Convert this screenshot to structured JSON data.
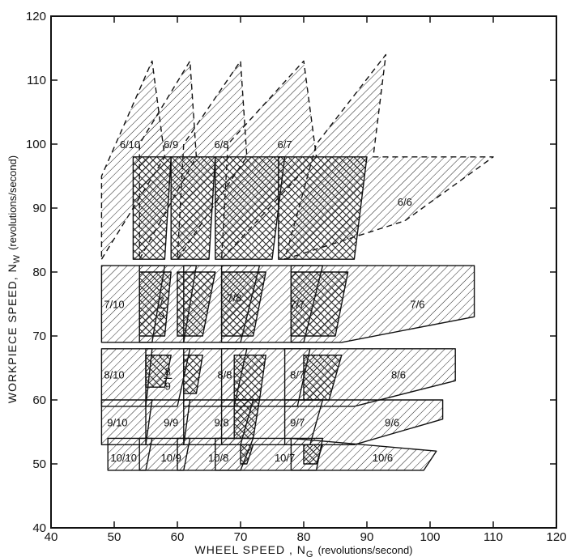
{
  "chart_data": {
    "type": "area",
    "title": "",
    "xlabel": "WHEEL SPEED , N",
    "xlabel_sub": "G",
    "xlabel_units": "(revolutions/second)",
    "ylabel": "WORKPIECE SPEED, N",
    "ylabel_sub": "W",
    "ylabel_units": "(revolutions/second)",
    "xlim": [
      40,
      120
    ],
    "ylim": [
      40,
      120
    ],
    "xticks": [
      40,
      50,
      60,
      70,
      80,
      90,
      100,
      110,
      120
    ],
    "yticks": [
      40,
      50,
      60,
      70,
      80,
      90,
      100,
      110,
      120
    ],
    "grid": false,
    "regions": [
      {
        "label": "6/10",
        "dashed": true,
        "polygon": [
          [
            48,
            82
          ],
          [
            58,
            98
          ],
          [
            56,
            113
          ],
          [
            48,
            95
          ]
        ]
      },
      {
        "label": "6/9",
        "dashed": true,
        "polygon": [
          [
            54,
            82
          ],
          [
            63,
            98
          ],
          [
            62,
            113
          ],
          [
            54,
            100
          ]
        ]
      },
      {
        "label": "6/8",
        "dashed": true,
        "polygon": [
          [
            60,
            82
          ],
          [
            71,
            98
          ],
          [
            70,
            113
          ],
          [
            61,
            100
          ]
        ]
      },
      {
        "label": "6/7",
        "dashed": true,
        "polygon": [
          [
            67,
            82
          ],
          [
            82,
            98
          ],
          [
            80,
            113
          ],
          [
            68,
            100
          ]
        ]
      },
      {
        "label": "6/6",
        "dashed": true,
        "polygon": [
          [
            77,
            82
          ],
          [
            96,
            88
          ],
          [
            110,
            98
          ],
          [
            91,
            98
          ],
          [
            93,
            114
          ],
          [
            82,
            100
          ]
        ]
      },
      {
        "label": "7/10",
        "dashed": false,
        "polygon": [
          [
            48,
            81
          ],
          [
            58,
            81
          ],
          [
            56,
            69
          ],
          [
            48,
            69
          ]
        ]
      },
      {
        "label": "7/9",
        "dashed": false,
        "polygon": [
          [
            54,
            81
          ],
          [
            63,
            81
          ],
          [
            61,
            69
          ],
          [
            54,
            69
          ]
        ]
      },
      {
        "label": "7/8",
        "dashed": false,
        "polygon": [
          [
            61,
            81
          ],
          [
            73,
            81
          ],
          [
            70,
            69
          ],
          [
            61,
            69
          ]
        ]
      },
      {
        "label": "7/7",
        "dashed": false,
        "polygon": [
          [
            67,
            81
          ],
          [
            83,
            81
          ],
          [
            80,
            69
          ],
          [
            67,
            69
          ]
        ]
      },
      {
        "label": "7/6",
        "dashed": false,
        "polygon": [
          [
            78,
            81
          ],
          [
            107,
            81
          ],
          [
            107,
            73
          ],
          [
            86,
            69
          ],
          [
            78,
            69
          ]
        ]
      },
      {
        "label": "8/10",
        "dashed": false,
        "polygon": [
          [
            48,
            68
          ],
          [
            56,
            68
          ],
          [
            55,
            59
          ],
          [
            48,
            59
          ]
        ]
      },
      {
        "label": "8/9",
        "dashed": false,
        "polygon": [
          [
            55,
            68
          ],
          [
            62,
            68
          ],
          [
            60,
            59
          ],
          [
            55,
            59
          ]
        ]
      },
      {
        "label": "8/8",
        "dashed": false,
        "polygon": [
          [
            61,
            68
          ],
          [
            71,
            68
          ],
          [
            69,
            59
          ],
          [
            61,
            59
          ]
        ]
      },
      {
        "label": "8/7",
        "dashed": false,
        "polygon": [
          [
            67,
            68
          ],
          [
            81,
            68
          ],
          [
            79,
            59
          ],
          [
            67,
            59
          ]
        ]
      },
      {
        "label": "8/6",
        "dashed": false,
        "polygon": [
          [
            77,
            68
          ],
          [
            104,
            68
          ],
          [
            104,
            63
          ],
          [
            88,
            59
          ],
          [
            77,
            59
          ]
        ]
      },
      {
        "label": "9/10",
        "dashed": false,
        "polygon": [
          [
            48,
            60
          ],
          [
            56,
            60
          ],
          [
            55,
            53
          ],
          [
            48,
            53
          ]
        ]
      },
      {
        "label": "9/9",
        "dashed": false,
        "polygon": [
          [
            55,
            60
          ],
          [
            62,
            60
          ],
          [
            61,
            53
          ],
          [
            55,
            53
          ]
        ]
      },
      {
        "label": "9/8",
        "dashed": false,
        "polygon": [
          [
            61,
            60
          ],
          [
            72,
            60
          ],
          [
            70,
            53
          ],
          [
            61,
            53
          ]
        ]
      },
      {
        "label": "9/7",
        "dashed": false,
        "polygon": [
          [
            67,
            60
          ],
          [
            83,
            60
          ],
          [
            81,
            53
          ],
          [
            67,
            53
          ]
        ]
      },
      {
        "label": "9/6",
        "dashed": false,
        "polygon": [
          [
            77,
            60
          ],
          [
            102,
            60
          ],
          [
            102,
            57
          ],
          [
            88,
            53
          ],
          [
            77,
            53
          ]
        ]
      },
      {
        "label": "10/10",
        "dashed": false,
        "polygon": [
          [
            49,
            54
          ],
          [
            56,
            54
          ],
          [
            55,
            49
          ],
          [
            49,
            49
          ]
        ]
      },
      {
        "label": "10/9",
        "dashed": false,
        "polygon": [
          [
            54,
            54
          ],
          [
            62,
            54
          ],
          [
            61,
            49
          ],
          [
            54,
            49
          ]
        ]
      },
      {
        "label": "10/8",
        "dashed": false,
        "polygon": [
          [
            60,
            54
          ],
          [
            72,
            54
          ],
          [
            70,
            49
          ],
          [
            60,
            49
          ]
        ]
      },
      {
        "label": "10/7",
        "dashed": false,
        "polygon": [
          [
            66,
            54
          ],
          [
            83,
            54
          ],
          [
            82,
            49
          ],
          [
            66,
            49
          ]
        ]
      },
      {
        "label": "10/6",
        "dashed": false,
        "polygon": [
          [
            78,
            54
          ],
          [
            101,
            52
          ],
          [
            99,
            49
          ],
          [
            78,
            49
          ]
        ]
      }
    ],
    "overlaps": [
      [
        [
          53,
          98
        ],
        [
          59,
          98
        ],
        [
          58,
          82
        ],
        [
          53,
          82
        ]
      ],
      [
        [
          59,
          98
        ],
        [
          66,
          98
        ],
        [
          65,
          82
        ],
        [
          59,
          82
        ]
      ],
      [
        [
          66,
          98
        ],
        [
          77,
          98
        ],
        [
          75,
          82
        ],
        [
          66,
          82
        ]
      ],
      [
        [
          76,
          98
        ],
        [
          90,
          98
        ],
        [
          88,
          82
        ],
        [
          76,
          82
        ]
      ],
      [
        [
          54,
          80
        ],
        [
          59,
          80
        ],
        [
          58,
          70
        ],
        [
          54,
          70
        ]
      ],
      [
        [
          60,
          80
        ],
        [
          66,
          80
        ],
        [
          64,
          70
        ],
        [
          60,
          70
        ]
      ],
      [
        [
          67,
          80
        ],
        [
          74,
          80
        ],
        [
          72,
          70
        ],
        [
          67,
          70
        ]
      ],
      [
        [
          78,
          80
        ],
        [
          87,
          80
        ],
        [
          85,
          70
        ],
        [
          78,
          70
        ]
      ],
      [
        [
          55,
          67
        ],
        [
          59,
          67
        ],
        [
          58,
          62
        ],
        [
          55,
          62
        ]
      ],
      [
        [
          61,
          67
        ],
        [
          64,
          67
        ],
        [
          63,
          61
        ],
        [
          61,
          61
        ]
      ],
      [
        [
          69,
          67
        ],
        [
          74,
          67
        ],
        [
          73,
          60
        ],
        [
          69,
          60
        ]
      ],
      [
        [
          80,
          67
        ],
        [
          86,
          67
        ],
        [
          84,
          60
        ],
        [
          80,
          60
        ]
      ],
      [
        [
          69,
          60
        ],
        [
          73,
          60
        ],
        [
          72,
          54
        ],
        [
          69,
          54
        ]
      ],
      [
        [
          70,
          53
        ],
        [
          72,
          53
        ],
        [
          71,
          50
        ],
        [
          70,
          50
        ]
      ],
      [
        [
          80,
          53
        ],
        [
          83,
          53
        ],
        [
          82,
          50
        ],
        [
          80,
          50
        ]
      ]
    ],
    "region_labels": [
      {
        "text": "6/10",
        "x": 52.5,
        "y": 100
      },
      {
        "text": "6/9",
        "x": 59,
        "y": 100
      },
      {
        "text": "6/8",
        "x": 67,
        "y": 100
      },
      {
        "text": "6/7",
        "x": 77,
        "y": 100
      },
      {
        "text": "6/6",
        "x": 96,
        "y": 91
      },
      {
        "text": "7/10",
        "x": 50,
        "y": 75
      },
      {
        "text": "7/8",
        "x": 69,
        "y": 76
      },
      {
        "text": "7/7",
        "x": 79,
        "y": 75
      },
      {
        "text": "7/6",
        "x": 98,
        "y": 75
      },
      {
        "text": "8/10",
        "x": 50,
        "y": 64
      },
      {
        "text": "8/8",
        "x": 67.5,
        "y": 64
      },
      {
        "text": "8/7",
        "x": 79,
        "y": 64
      },
      {
        "text": "8/6",
        "x": 95,
        "y": 64
      },
      {
        "text": "9/10",
        "x": 50.5,
        "y": 56.5
      },
      {
        "text": "9/9",
        "x": 59,
        "y": 56.5
      },
      {
        "text": "9/8",
        "x": 67,
        "y": 56.5
      },
      {
        "text": "9/7",
        "x": 79,
        "y": 56.5
      },
      {
        "text": "9/6",
        "x": 94,
        "y": 56.5
      },
      {
        "text": "10/10",
        "x": 51.5,
        "y": 51
      },
      {
        "text": "10/9",
        "x": 59,
        "y": 51
      },
      {
        "text": "10/8",
        "x": 66.5,
        "y": 51
      },
      {
        "text": "10/7",
        "x": 77,
        "y": 51
      },
      {
        "text": "10/6",
        "x": 92.5,
        "y": 51
      }
    ],
    "fraction_labels": [
      {
        "num": "7",
        "den": "9",
        "x": 57.5,
        "y": 74.5
      },
      {
        "num": "8",
        "den": "9",
        "x": 58.5,
        "y": 63.5
      }
    ]
  }
}
